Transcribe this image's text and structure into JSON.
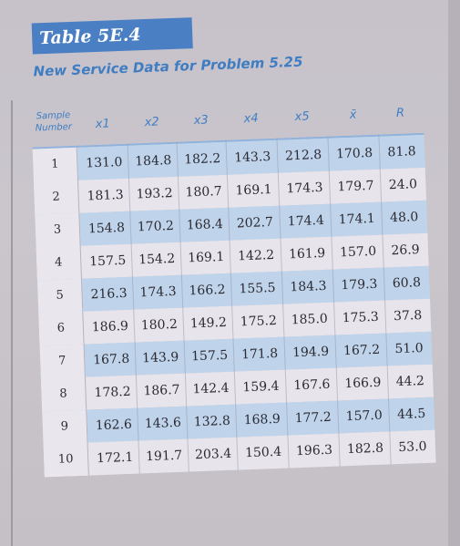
{
  "table": {
    "label": "Table 5E.4",
    "title": "New Service Data for Problem 5.25",
    "headers": {
      "sample": [
        "Sample",
        "Number"
      ],
      "cols": [
        "x1",
        "x2",
        "x3",
        "x4",
        "x5",
        "x̄",
        "R"
      ]
    },
    "rows": [
      {
        "n": "1",
        "v": [
          "131.0",
          "184.8",
          "182.2",
          "143.3",
          "212.8",
          "170.8",
          "81.8"
        ]
      },
      {
        "n": "2",
        "v": [
          "181.3",
          "193.2",
          "180.7",
          "169.1",
          "174.3",
          "179.7",
          "24.0"
        ]
      },
      {
        "n": "3",
        "v": [
          "154.8",
          "170.2",
          "168.4",
          "202.7",
          "174.4",
          "174.1",
          "48.0"
        ]
      },
      {
        "n": "4",
        "v": [
          "157.5",
          "154.2",
          "169.1",
          "142.2",
          "161.9",
          "157.0",
          "26.9"
        ]
      },
      {
        "n": "5",
        "v": [
          "216.3",
          "174.3",
          "166.2",
          "155.5",
          "184.3",
          "179.3",
          "60.8"
        ]
      },
      {
        "n": "6",
        "v": [
          "186.9",
          "180.2",
          "149.2",
          "175.2",
          "185.0",
          "175.3",
          "37.8"
        ]
      },
      {
        "n": "7",
        "v": [
          "167.8",
          "143.9",
          "157.5",
          "171.8",
          "194.9",
          "167.2",
          "51.0"
        ]
      },
      {
        "n": "8",
        "v": [
          "178.2",
          "186.7",
          "142.4",
          "159.4",
          "167.6",
          "166.9",
          "44.2"
        ]
      },
      {
        "n": "9",
        "v": [
          "162.6",
          "143.6",
          "132.8",
          "168.9",
          "177.2",
          "157.0",
          "44.5"
        ]
      },
      {
        "n": "10",
        "v": [
          "172.1",
          "191.7",
          "203.4",
          "150.4",
          "196.3",
          "182.8",
          "53.0"
        ]
      }
    ]
  }
}
